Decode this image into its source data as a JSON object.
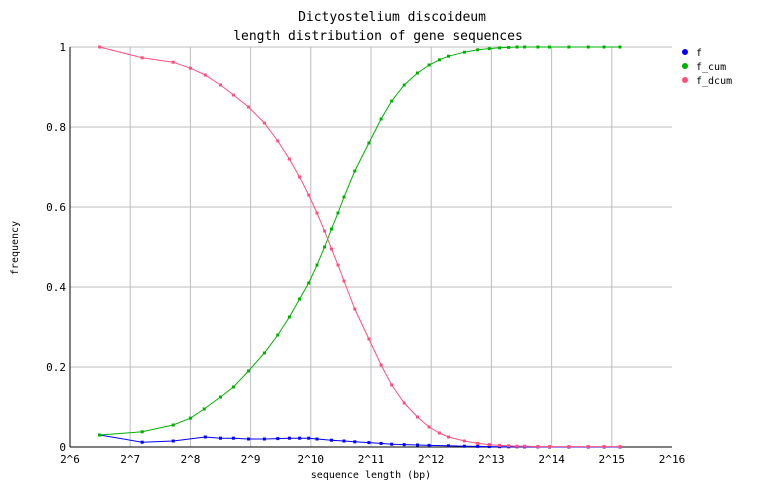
{
  "chart_data": {
    "type": "line",
    "title": [
      "Dictyostelium discoideum",
      "length distribution of gene sequences"
    ],
    "xlabel": "sequence length (bp)",
    "ylabel": "frequency",
    "x_scale": "log2",
    "xlim": [
      64,
      65536
    ],
    "ylim": [
      0,
      1
    ],
    "x_ticks": [
      64,
      128,
      256,
      512,
      1024,
      2048,
      4096,
      8192,
      16384,
      32768,
      65536
    ],
    "x_tick_labels": [
      "2^6",
      "2^7",
      "2^8",
      "2^9",
      "2^10",
      "2^11",
      "2^12",
      "2^13",
      "2^14",
      "2^15",
      "2^16"
    ],
    "y_ticks": [
      0,
      0.2,
      0.4,
      0.6,
      0.8,
      1
    ],
    "y_tick_labels": [
      "0",
      "0.2",
      "0.4",
      "0.6",
      "0.8",
      "1"
    ],
    "grid": true,
    "legend_position": "right",
    "series": [
      {
        "name": "f",
        "color": "#0000ff",
        "x": [
          90,
          147,
          210,
          304,
          362,
          420,
          500,
          600,
          700,
          800,
          900,
          1000,
          1100,
          1300,
          1500,
          1700,
          2000,
          2300,
          2600,
          3000,
          3500,
          4000,
          5000,
          6000,
          7000,
          8000,
          9000,
          10000,
          11000,
          12000,
          14000,
          16000,
          20000,
          25000,
          30000,
          36000
        ],
        "y": [
          0.03,
          0.012,
          0.015,
          0.025,
          0.022,
          0.022,
          0.02,
          0.02,
          0.021,
          0.022,
          0.022,
          0.022,
          0.02,
          0.017,
          0.015,
          0.013,
          0.011,
          0.009,
          0.007,
          0.006,
          0.005,
          0.004,
          0.003,
          0.002,
          0.0015,
          0.001,
          0.0008,
          0.0006,
          0.0004,
          0.0003,
          0.0002,
          0.0001,
          0.0001,
          0.0001,
          0.0001,
          0.0001
        ]
      },
      {
        "name": "f_cum",
        "color": "#00b000",
        "x": [
          90,
          147,
          210,
          256,
          300,
          362,
          420,
          500,
          600,
          700,
          800,
          900,
          1000,
          1100,
          1200,
          1300,
          1400,
          1500,
          1700,
          2000,
          2300,
          2600,
          3000,
          3500,
          4000,
          4500,
          5000,
          6000,
          7000,
          8000,
          9000,
          10000,
          11000,
          12000,
          14000,
          16000,
          20000,
          25000,
          30000,
          36000
        ],
        "y": [
          0.03,
          0.038,
          0.055,
          0.072,
          0.095,
          0.125,
          0.15,
          0.19,
          0.235,
          0.28,
          0.325,
          0.37,
          0.41,
          0.455,
          0.5,
          0.545,
          0.585,
          0.625,
          0.69,
          0.76,
          0.82,
          0.865,
          0.905,
          0.935,
          0.955,
          0.968,
          0.977,
          0.987,
          0.993,
          0.996,
          0.998,
          0.999,
          1,
          1,
          1,
          1,
          1,
          1,
          1,
          1
        ]
      },
      {
        "name": "f_dcum",
        "color": "#ff4f80",
        "x": [
          90,
          147,
          210,
          256,
          304,
          362,
          420,
          500,
          600,
          700,
          800,
          900,
          1000,
          1100,
          1200,
          1300,
          1400,
          1500,
          1700,
          2000,
          2300,
          2600,
          3000,
          3500,
          4000,
          4500,
          5000,
          6000,
          7000,
          8000,
          9000,
          10000,
          11000,
          12000,
          14000,
          16000,
          20000,
          25000,
          30000,
          36000
        ],
        "y": [
          1,
          0.973,
          0.962,
          0.947,
          0.93,
          0.905,
          0.88,
          0.85,
          0.81,
          0.765,
          0.72,
          0.675,
          0.63,
          0.585,
          0.54,
          0.495,
          0.455,
          0.415,
          0.345,
          0.27,
          0.205,
          0.155,
          0.11,
          0.075,
          0.05,
          0.035,
          0.025,
          0.015,
          0.009,
          0.006,
          0.004,
          0.003,
          0.002,
          0.002,
          0.001,
          0.001,
          0.001,
          0.001,
          0.001,
          0.001
        ]
      }
    ]
  }
}
